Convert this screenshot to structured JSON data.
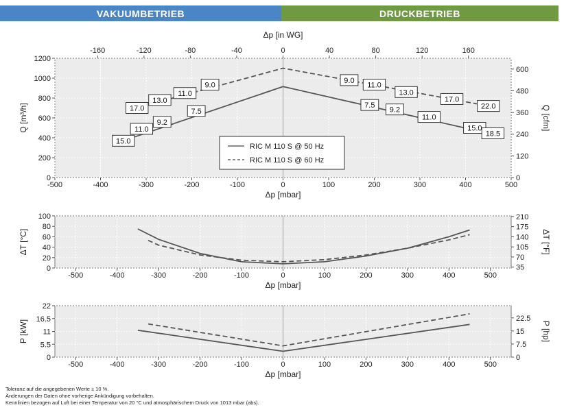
{
  "headers": {
    "left": "VAKUUMBETRIEB",
    "right": "DRUCKBETRIEB"
  },
  "chart_data": [
    {
      "type": "line",
      "name": "flow",
      "xlabel": "Δp [mbar]",
      "x2label": "Δp [in WG]",
      "ylabel": "Q [m³/h]",
      "y2label": "Q [cfm]",
      "xlim": [
        -500,
        500
      ],
      "ylim": [
        0,
        1200
      ],
      "xticks": [
        -500,
        -400,
        -300,
        -200,
        -100,
        0,
        100,
        200,
        300,
        400,
        500
      ],
      "yticks": [
        0,
        200,
        400,
        600,
        800,
        1000,
        1200
      ],
      "x2ticks": [
        -160,
        -120,
        -80,
        -40,
        0,
        40,
        80,
        120,
        160
      ],
      "y2ticks": [
        0,
        120,
        240,
        360,
        480,
        600
      ],
      "legend": [
        "RIC M 110 S @ 50 Hz",
        "RIC M 110 S @ 60 Hz"
      ],
      "series": [
        {
          "name": "RIC M 110 S @ 50 Hz",
          "style": "solid",
          "x": [
            -350,
            0,
            450
          ],
          "y": [
            370,
            915,
            445
          ]
        },
        {
          "name": "RIC M 110 S @ 60 Hz",
          "style": "dashed",
          "x": [
            -325,
            0,
            450
          ],
          "y": [
            695,
            1100,
            720
          ]
        }
      ],
      "annotations": [
        {
          "text": "15.0",
          "x": -350,
          "y": 370
        },
        {
          "text": "11.0",
          "x": -310,
          "y": 490
        },
        {
          "text": "9.2",
          "x": -265,
          "y": 560
        },
        {
          "text": "7.5",
          "x": -190,
          "y": 670
        },
        {
          "text": "17.0",
          "x": -320,
          "y": 700
        },
        {
          "text": "13.0",
          "x": -270,
          "y": 780
        },
        {
          "text": "11.0",
          "x": -215,
          "y": 850
        },
        {
          "text": "9.0",
          "x": -160,
          "y": 935
        },
        {
          "text": "9.0",
          "x": 145,
          "y": 980
        },
        {
          "text": "11.0",
          "x": 200,
          "y": 935
        },
        {
          "text": "13.0",
          "x": 270,
          "y": 860
        },
        {
          "text": "17.0",
          "x": 370,
          "y": 790
        },
        {
          "text": "22.0",
          "x": 450,
          "y": 720
        },
        {
          "text": "7.5",
          "x": 190,
          "y": 730
        },
        {
          "text": "9.2",
          "x": 245,
          "y": 685
        },
        {
          "text": "11.0",
          "x": 320,
          "y": 610
        },
        {
          "text": "15.0",
          "x": 420,
          "y": 500
        },
        {
          "text": "18.5",
          "x": 460,
          "y": 445
        }
      ]
    },
    {
      "type": "line",
      "name": "temperature",
      "xlabel": "Δp [mbar]",
      "ylabel": "ΔT [°C]",
      "y2label": "ΔT [°F]",
      "xlim": [
        -550,
        550
      ],
      "ylim": [
        0,
        100
      ],
      "xticks": [
        -500,
        -400,
        -300,
        -200,
        -100,
        0,
        100,
        200,
        300,
        400,
        500
      ],
      "yticks": [
        0,
        20,
        40,
        60,
        80,
        100
      ],
      "y2ticks": [
        35,
        70,
        105,
        140,
        175,
        210
      ],
      "series": [
        {
          "name": "RIC M 110 S @ 50 Hz",
          "style": "solid",
          "x": [
            -350,
            -300,
            -200,
            -100,
            0,
            100,
            200,
            300,
            400,
            450
          ],
          "y": [
            75,
            55,
            28,
            12,
            8,
            12,
            23,
            38,
            60,
            73
          ]
        },
        {
          "name": "RIC M 110 S @ 60 Hz",
          "style": "dashed",
          "x": [
            -325,
            -300,
            -200,
            -100,
            0,
            100,
            200,
            300,
            400,
            450
          ],
          "y": [
            53,
            44,
            25,
            15,
            12,
            16,
            25,
            38,
            54,
            64
          ]
        }
      ]
    },
    {
      "type": "line",
      "name": "power",
      "xlabel": "Δp [mbar]",
      "ylabel": "P [kW]",
      "y2label": "P [hp]",
      "xlim": [
        -550,
        550
      ],
      "ylim": [
        0,
        22
      ],
      "xticks": [
        -500,
        -400,
        -300,
        -200,
        -100,
        0,
        100,
        200,
        300,
        400,
        500
      ],
      "yticks": [
        0,
        5.5,
        11,
        16.5,
        22
      ],
      "ytick_labels": [
        "0",
        "5.5",
        "11",
        "16.5",
        "22"
      ],
      "y2ticks": [
        0,
        7.5,
        15,
        22.5
      ],
      "y2tick_labels": [
        "0",
        "7.5",
        "15",
        "22.5"
      ],
      "series": [
        {
          "name": "RIC M 110 S @ 50 Hz",
          "style": "solid",
          "x": [
            -350,
            0,
            450
          ],
          "y": [
            11.5,
            2.5,
            14
          ]
        },
        {
          "name": "RIC M 110 S @ 60 Hz",
          "style": "dashed",
          "x": [
            -325,
            0,
            450
          ],
          "y": [
            14.2,
            4.8,
            18.5
          ]
        }
      ]
    }
  ],
  "notes": [
    "Toleranz auf die angegebenen Werte ± 10 %.",
    "Änderungen der Daten ohne vorherige Ankündigung vorbehalten.",
    "Kennlinien bezogen auf Luft bei einer Temperatur von 20 °C und atmosphärischem Druck von 1013 mbar (abs)."
  ]
}
